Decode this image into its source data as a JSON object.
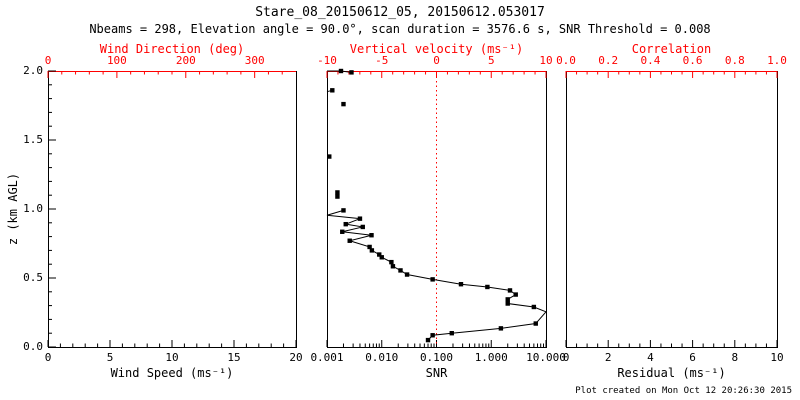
{
  "header": {
    "title": "Stare_08_20150612_05, 20150612.053017",
    "subtitle": "Nbeams = 298, Elevation angle = 90.0°, scan duration = 3576.6 s, SNR Threshold = 0.008"
  },
  "footer": {
    "created": "Plot created on Mon Oct 12 20:26:30 2015"
  },
  "colors": {
    "background": "#ffffff",
    "frame": "#000000",
    "secondary_axis": "#ff0000",
    "data": "#000000",
    "ref_line": "#ff0000"
  },
  "chart_data": [
    {
      "type": "scatter",
      "panel": "wind",
      "xaxis_bottom": {
        "label": "Wind Speed (ms⁻¹)",
        "lim": [
          0,
          20
        ],
        "ticks": [
          0,
          5,
          10,
          15,
          20
        ],
        "tick_labels": [
          "0",
          "5",
          "10",
          "15",
          "20"
        ],
        "minor_step": 1,
        "color": "#000000"
      },
      "xaxis_top": {
        "label": "Wind Direction (deg)",
        "lim": [
          0,
          360
        ],
        "ticks": [
          0,
          100,
          200,
          300
        ],
        "tick_labels": [
          "0",
          "100",
          "200",
          "300"
        ],
        "minor_step": 20,
        "color": "#ff0000"
      },
      "yaxis": {
        "label": "z (km AGL)",
        "lim": [
          0,
          2.0
        ],
        "ticks": [
          0,
          0.5,
          1.0,
          1.5,
          2.0
        ],
        "tick_labels": [
          "0.0",
          "0.5",
          "1.0",
          "1.5",
          "2.0"
        ],
        "minor_step": 0.1,
        "show_tick_labels": true
      },
      "series": []
    },
    {
      "type": "line-scatter",
      "panel": "snr",
      "xaxis_bottom": {
        "label": "SNR",
        "scale": "log",
        "lim": [
          0.001,
          10
        ],
        "ticks": [
          0.001,
          0.01,
          0.1,
          1,
          10
        ],
        "tick_labels": [
          "0.001",
          "0.010",
          "0.100",
          "1.000",
          "10.000"
        ],
        "color": "#000000"
      },
      "xaxis_top": {
        "label": "Vertical velocity (ms⁻¹)",
        "lim": [
          -10,
          10
        ],
        "ticks": [
          -10,
          -5,
          0,
          5,
          10
        ],
        "tick_labels": [
          "-10",
          "-5",
          "0",
          "5",
          "10"
        ],
        "minor_step": 1,
        "color": "#ff0000"
      },
      "yaxis": {
        "lim": [
          0,
          2.0
        ],
        "show_tick_labels": false
      },
      "ref_line": {
        "axis": "top",
        "value": 0,
        "color": "#ff0000",
        "style": "dotted"
      },
      "series_name": "SNR vs height profile (black squares, point_marker_flag 1 = marker drawn)",
      "segments": [
        {
          "points": [
            [
              0.001,
              2.0,
              0
            ],
            [
              0.0018,
              2.0,
              1
            ],
            [
              0.0028,
              1.99,
              1
            ]
          ]
        },
        {
          "points": [
            [
              0.001,
              1.85,
              0
            ],
            [
              0.00125,
              1.86,
              1
            ]
          ]
        },
        {
          "points": [
            [
              0.002,
              1.76,
              1
            ]
          ]
        },
        {
          "points": [
            [
              0.0011,
              1.38,
              1
            ]
          ]
        },
        {
          "points": [
            [
              0.00155,
              1.12,
              1
            ],
            [
              0.00155,
              1.09,
              1
            ]
          ]
        },
        {
          "points": [
            [
              0.002,
              0.99,
              1
            ],
            [
              0.001,
              0.955,
              0
            ],
            [
              0.004,
              0.93,
              1
            ],
            [
              0.0022,
              0.89,
              1
            ],
            [
              0.0045,
              0.87,
              1
            ],
            [
              0.0019,
              0.835,
              1
            ],
            [
              0.0065,
              0.81,
              1
            ],
            [
              0.0026,
              0.77,
              1
            ],
            [
              0.006,
              0.725,
              1
            ],
            [
              0.0066,
              0.7,
              1
            ],
            [
              0.009,
              0.67,
              1
            ],
            [
              0.01,
              0.65,
              1
            ],
            [
              0.015,
              0.615,
              1
            ],
            [
              0.016,
              0.585,
              1
            ],
            [
              0.022,
              0.555,
              1
            ],
            [
              0.029,
              0.525,
              1
            ],
            [
              0.085,
              0.49,
              1
            ],
            [
              0.28,
              0.455,
              1
            ],
            [
              0.85,
              0.435,
              1
            ],
            [
              2.2,
              0.41,
              1
            ],
            [
              2.8,
              0.38,
              1
            ],
            [
              2.0,
              0.345,
              1
            ],
            [
              2.0,
              0.315,
              1
            ],
            [
              6.0,
              0.29,
              1
            ],
            [
              10.0,
              0.255,
              0
            ],
            [
              6.5,
              0.17,
              1
            ],
            [
              1.5,
              0.135,
              1
            ],
            [
              0.19,
              0.1,
              1
            ],
            [
              0.085,
              0.085,
              1
            ],
            [
              0.07,
              0.05,
              1
            ]
          ]
        }
      ]
    },
    {
      "type": "scatter",
      "panel": "residual",
      "xaxis_bottom": {
        "label": "Residual (ms⁻¹)",
        "lim": [
          0,
          10
        ],
        "ticks": [
          0,
          2,
          4,
          6,
          8,
          10
        ],
        "tick_labels": [
          "0",
          "2",
          "4",
          "6",
          "8",
          "10"
        ],
        "minor_step": 0.5,
        "color": "#000000"
      },
      "xaxis_top": {
        "label": "Correlation",
        "lim": [
          0,
          1
        ],
        "ticks": [
          0,
          0.2,
          0.4,
          0.6,
          0.8,
          1.0
        ],
        "tick_labels": [
          "0.0",
          "0.2",
          "0.4",
          "0.6",
          "0.8",
          "1.0"
        ],
        "minor_step": 0.05,
        "color": "#ff0000"
      },
      "yaxis": {
        "lim": [
          0,
          2.0
        ],
        "show_tick_labels": false
      },
      "series": []
    }
  ]
}
